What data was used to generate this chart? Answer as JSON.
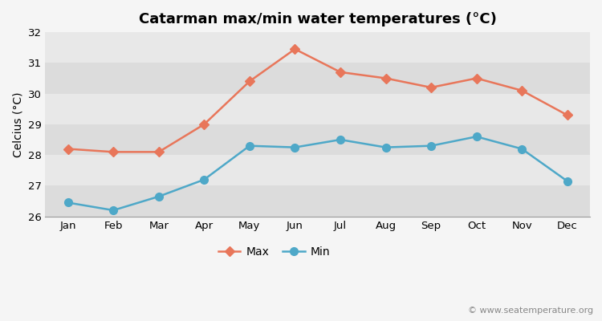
{
  "title": "Catarman max/min water temperatures (°C)",
  "ylabel": "Celcius (°C)",
  "months": [
    "Jan",
    "Feb",
    "Mar",
    "Apr",
    "May",
    "Jun",
    "Jul",
    "Aug",
    "Sep",
    "Oct",
    "Nov",
    "Dec"
  ],
  "max_values": [
    28.2,
    28.1,
    28.1,
    29.0,
    30.4,
    31.45,
    30.7,
    30.5,
    30.2,
    30.5,
    30.1,
    29.3
  ],
  "min_values": [
    26.45,
    26.2,
    26.65,
    27.2,
    28.3,
    28.25,
    28.5,
    28.25,
    28.3,
    28.6,
    28.2,
    27.15
  ],
  "max_color": "#e8765a",
  "min_color": "#4ea8c8",
  "figure_bg": "#f5f5f5",
  "band_dark": "#dcdcdc",
  "band_light": "#e8e8e8",
  "ylim": [
    26,
    32
  ],
  "yticks": [
    26,
    27,
    28,
    29,
    30,
    31,
    32
  ],
  "watermark": "© www.seatemperature.org",
  "title_fontsize": 13,
  "label_fontsize": 10,
  "tick_fontsize": 9.5,
  "watermark_fontsize": 8
}
